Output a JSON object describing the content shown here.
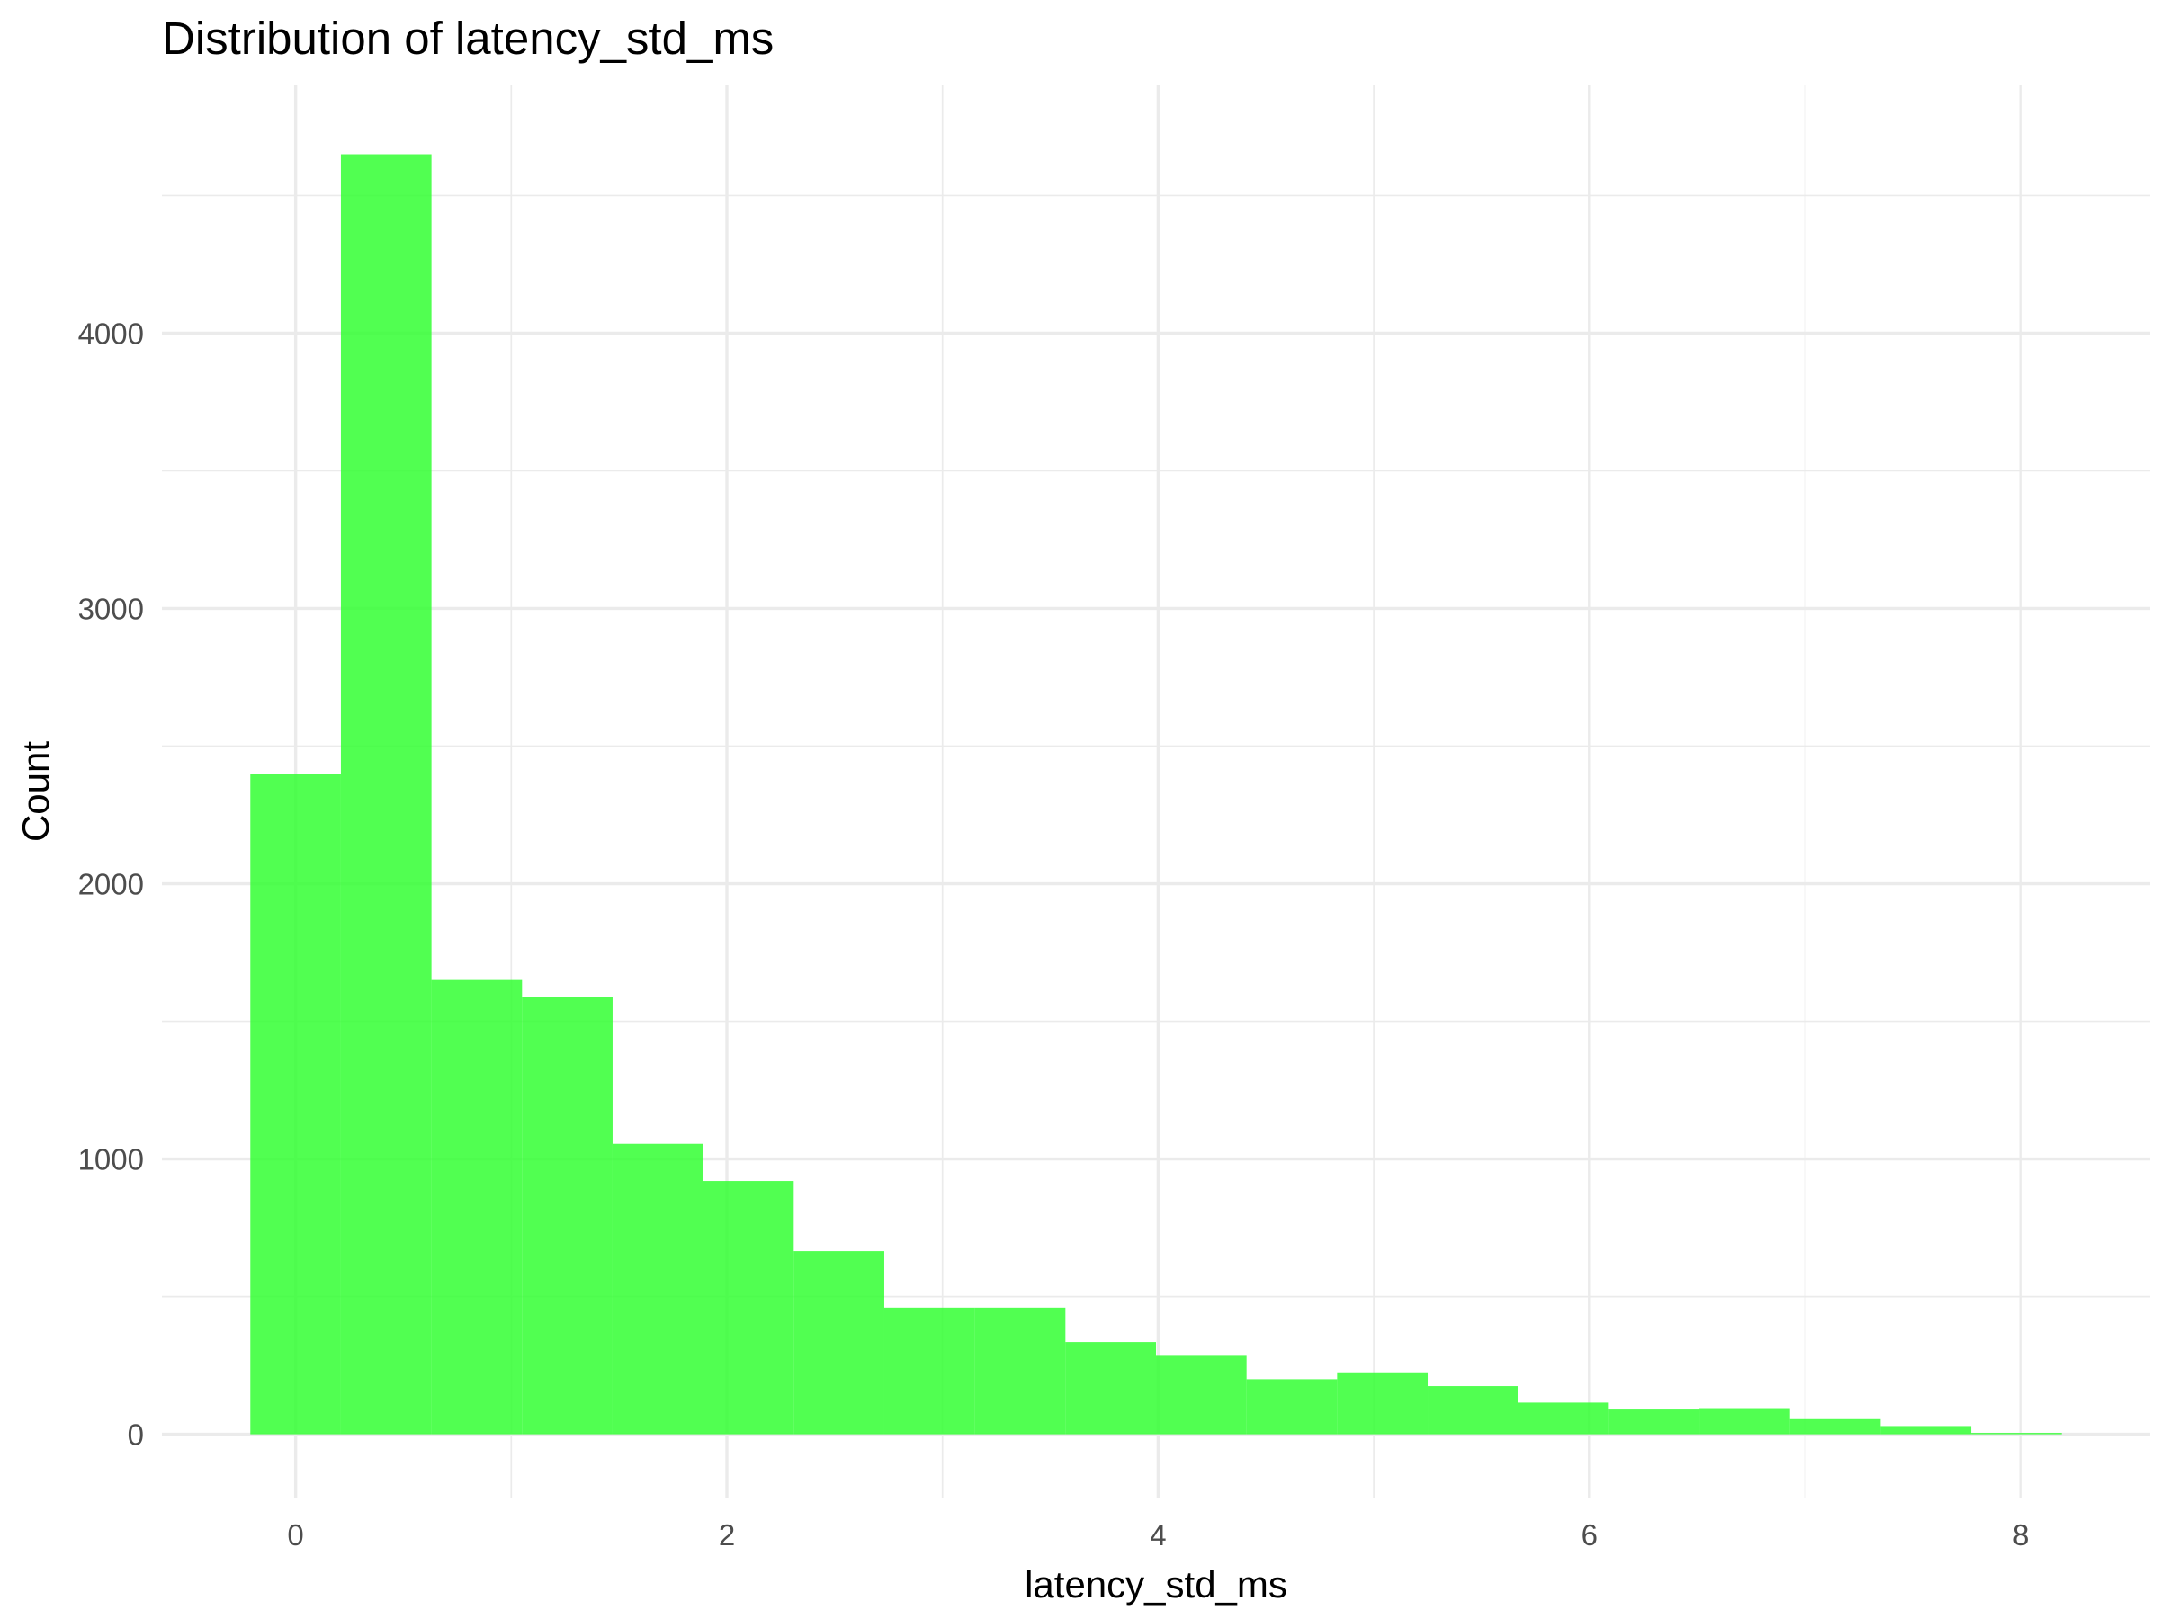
{
  "chart_data": {
    "type": "histogram",
    "title": "Distribution of latency_std_ms",
    "xlabel": "latency_std_ms",
    "ylabel": "Count",
    "bar_color": "#33FF33",
    "bar_opacity": 0.85,
    "background": "#ffffff",
    "grid": true,
    "xlim": [
      -0.62,
      8.6
    ],
    "ylim": [
      -230,
      4900
    ],
    "x_ticks": [
      0,
      2,
      4,
      6,
      8
    ],
    "x_tick_labels": [
      "0",
      "2",
      "4",
      "6",
      "8"
    ],
    "y_ticks": [
      0,
      1000,
      2000,
      3000,
      4000
    ],
    "y_tick_labels": [
      "0",
      "1000",
      "2000",
      "3000",
      "4000"
    ],
    "bin_edges": [
      -0.21,
      0.21,
      0.63,
      1.05,
      1.47,
      1.89,
      2.31,
      2.73,
      3.15,
      3.57,
      3.99,
      4.41,
      4.83,
      5.25,
      5.67,
      6.09,
      6.51,
      6.93,
      7.35,
      7.77,
      8.19
    ],
    "values": [
      2400,
      4650,
      1650,
      1590,
      1055,
      920,
      665,
      460,
      460,
      335,
      285,
      200,
      225,
      175,
      115,
      90,
      95,
      55,
      30,
      5
    ]
  }
}
